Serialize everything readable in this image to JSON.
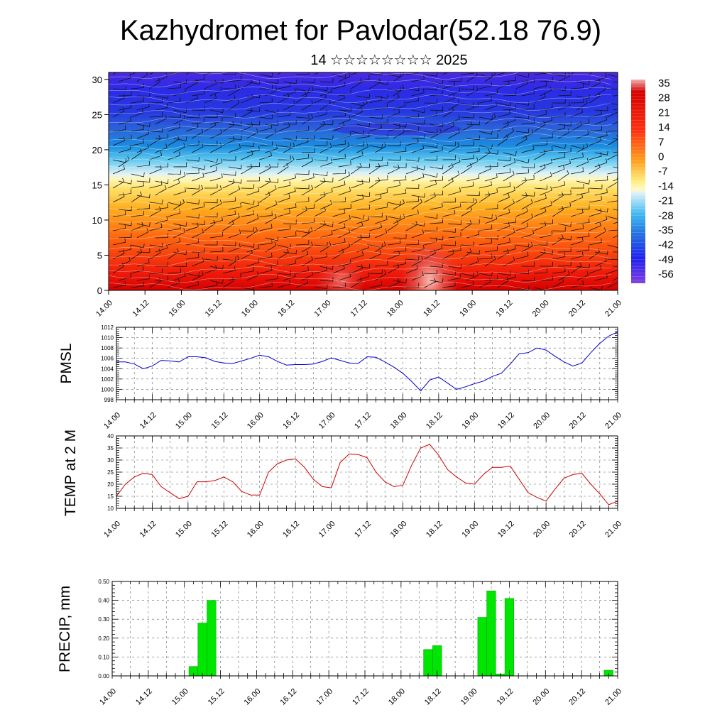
{
  "header": {
    "title": "Kazhydromet for Pavlodar(52.18 76.9)",
    "subtitle": "14 ☆☆☆☆☆☆☆☆ 2025"
  },
  "colors": {
    "pmsl_line": "#0000cc",
    "temp_line": "#cc0000",
    "precip_bar": "#00e600",
    "precip_bar_edge": "#009900"
  },
  "chart_data": [
    {
      "type": "heatmap",
      "id": "temperature-section",
      "xlabel": "",
      "ylabel": "",
      "x_ticks": [
        "14.00",
        "14.12",
        "15.00",
        "15.12",
        "16.00",
        "16.12",
        "17.00",
        "17.12",
        "18.00",
        "18.12",
        "19.00",
        "19.12",
        "20.00",
        "20.12",
        "21.00"
      ],
      "y_ticks": [
        0,
        5,
        10,
        15,
        20,
        25,
        30
      ],
      "ylim": [
        0,
        31
      ],
      "colorbar_labels": [
        "35",
        "28",
        "21",
        "14",
        "7",
        "0",
        "-7",
        "-14",
        "-21",
        "-28",
        "-35",
        "-42",
        "-49",
        "-56"
      ],
      "overlay": "wind barbs and contours",
      "grid": false
    },
    {
      "type": "line",
      "id": "pmsl",
      "ylabel": "PMSL",
      "x_ticks": [
        "14.00",
        "14.12",
        "15.00",
        "15.12",
        "16.00",
        "16.12",
        "17.00",
        "17.12",
        "18.00",
        "18.12",
        "19.00",
        "19.12",
        "20.00",
        "20.12",
        "21.00"
      ],
      "y_ticks": [
        998,
        1000,
        1002,
        1004,
        1006,
        1008,
        1010,
        1012
      ],
      "ylim": [
        998,
        1012
      ],
      "x": [
        0,
        0.125,
        0.25,
        0.375,
        0.5,
        0.625,
        0.75,
        0.875,
        1,
        1.125,
        1.25,
        1.375,
        1.5,
        1.625,
        1.75,
        1.875,
        2,
        2.125,
        2.25,
        2.375,
        2.5,
        2.625,
        2.75,
        2.875,
        3,
        3.125,
        3.25,
        3.375,
        3.5,
        3.625,
        3.75,
        3.875,
        4,
        4.125,
        4.25,
        4.375,
        4.5,
        4.625,
        4.75,
        4.875,
        5,
        5.125,
        5.25,
        5.375,
        5.5,
        5.625,
        5.75,
        5.875,
        6,
        6.125,
        6.25,
        6.375,
        6.5,
        6.625,
        6.75,
        6.875,
        7
      ],
      "values": [
        1005.3,
        1005.3,
        1004.9,
        1004.0,
        1004.5,
        1005.6,
        1005.5,
        1005.3,
        1006.3,
        1006.3,
        1006.1,
        1005.4,
        1005.1,
        1005.0,
        1005.5,
        1006.0,
        1006.6,
        1006.3,
        1005.4,
        1004.7,
        1004.8,
        1004.8,
        1004.9,
        1005.4,
        1006.1,
        1005.6,
        1005.1,
        1005.0,
        1006.3,
        1006.2,
        1005.3,
        1004.3,
        1003.1,
        1001.5,
        999.7,
        1001.8,
        1002.4,
        1001.2,
        1000.0,
        1000.5,
        1001.1,
        1001.6,
        1002.5,
        1003.1,
        1004.9,
        1006.9,
        1007.1,
        1008.0,
        1007.6,
        1006.4,
        1005.3,
        1004.5,
        1005.1,
        1007.1,
        1008.9,
        1010.3,
        1011.1
      ],
      "grid": true
    },
    {
      "type": "line",
      "id": "temp2m",
      "ylabel": "TEMP at 2 M",
      "x_ticks": [
        "14.00",
        "14.12",
        "15.00",
        "15.12",
        "16.00",
        "16.12",
        "17.00",
        "17.12",
        "18.00",
        "18.12",
        "19.00",
        "19.12",
        "20.00",
        "20.12",
        "21.00"
      ],
      "y_ticks": [
        10,
        15,
        20,
        25,
        30,
        35,
        40
      ],
      "ylim": [
        10,
        40
      ],
      "x": [
        0,
        0.125,
        0.25,
        0.375,
        0.5,
        0.625,
        0.75,
        0.875,
        1,
        1.125,
        1.25,
        1.375,
        1.5,
        1.625,
        1.75,
        1.875,
        2,
        2.125,
        2.25,
        2.375,
        2.5,
        2.625,
        2.75,
        2.875,
        3,
        3.125,
        3.25,
        3.375,
        3.5,
        3.625,
        3.75,
        3.875,
        4,
        4.125,
        4.25,
        4.375,
        4.5,
        4.625,
        4.75,
        4.875,
        5,
        5.125,
        5.25,
        5.375,
        5.5,
        5.625,
        5.75,
        5.875,
        6,
        6.125,
        6.25,
        6.375,
        6.5,
        6.625,
        6.75,
        6.875,
        7
      ],
      "values": [
        15,
        20,
        23,
        24.5,
        24,
        19,
        16.5,
        14,
        15,
        21,
        21,
        21.5,
        23,
        21,
        17,
        15.5,
        15.5,
        25,
        28.5,
        30,
        30.5,
        27,
        22,
        19,
        18.5,
        29,
        32.5,
        32.3,
        31,
        25,
        21,
        19,
        19.5,
        28,
        35,
        36.5,
        32,
        26,
        23,
        20.5,
        20,
        24,
        27,
        27,
        27.5,
        22,
        16.5,
        14.5,
        13,
        18,
        22.5,
        24,
        24.5,
        20,
        16,
        11.5,
        13
      ],
      "grid": true
    },
    {
      "type": "bar",
      "id": "precip",
      "ylabel": "PRECIP, mm",
      "x_ticks": [
        "14.00",
        "14.12",
        "15.00",
        "15.12",
        "16.00",
        "16.12",
        "17.00",
        "17.12",
        "18.00",
        "18.12",
        "19.00",
        "19.12",
        "20.00",
        "20.12",
        "21.00"
      ],
      "y_ticks": [
        "0.00",
        "0.10",
        "0.20",
        "0.30",
        "0.40",
        "0.50"
      ],
      "ylim": [
        0,
        0.5
      ],
      "x": [
        1.125,
        1.25,
        1.375,
        4.375,
        4.5,
        5.125,
        5.25,
        5.375,
        5.5,
        6.875
      ],
      "values": [
        0.05,
        0.28,
        0.4,
        0.14,
        0.16,
        0.31,
        0.45,
        0.01,
        0.41,
        0.03
      ],
      "grid": true
    }
  ]
}
